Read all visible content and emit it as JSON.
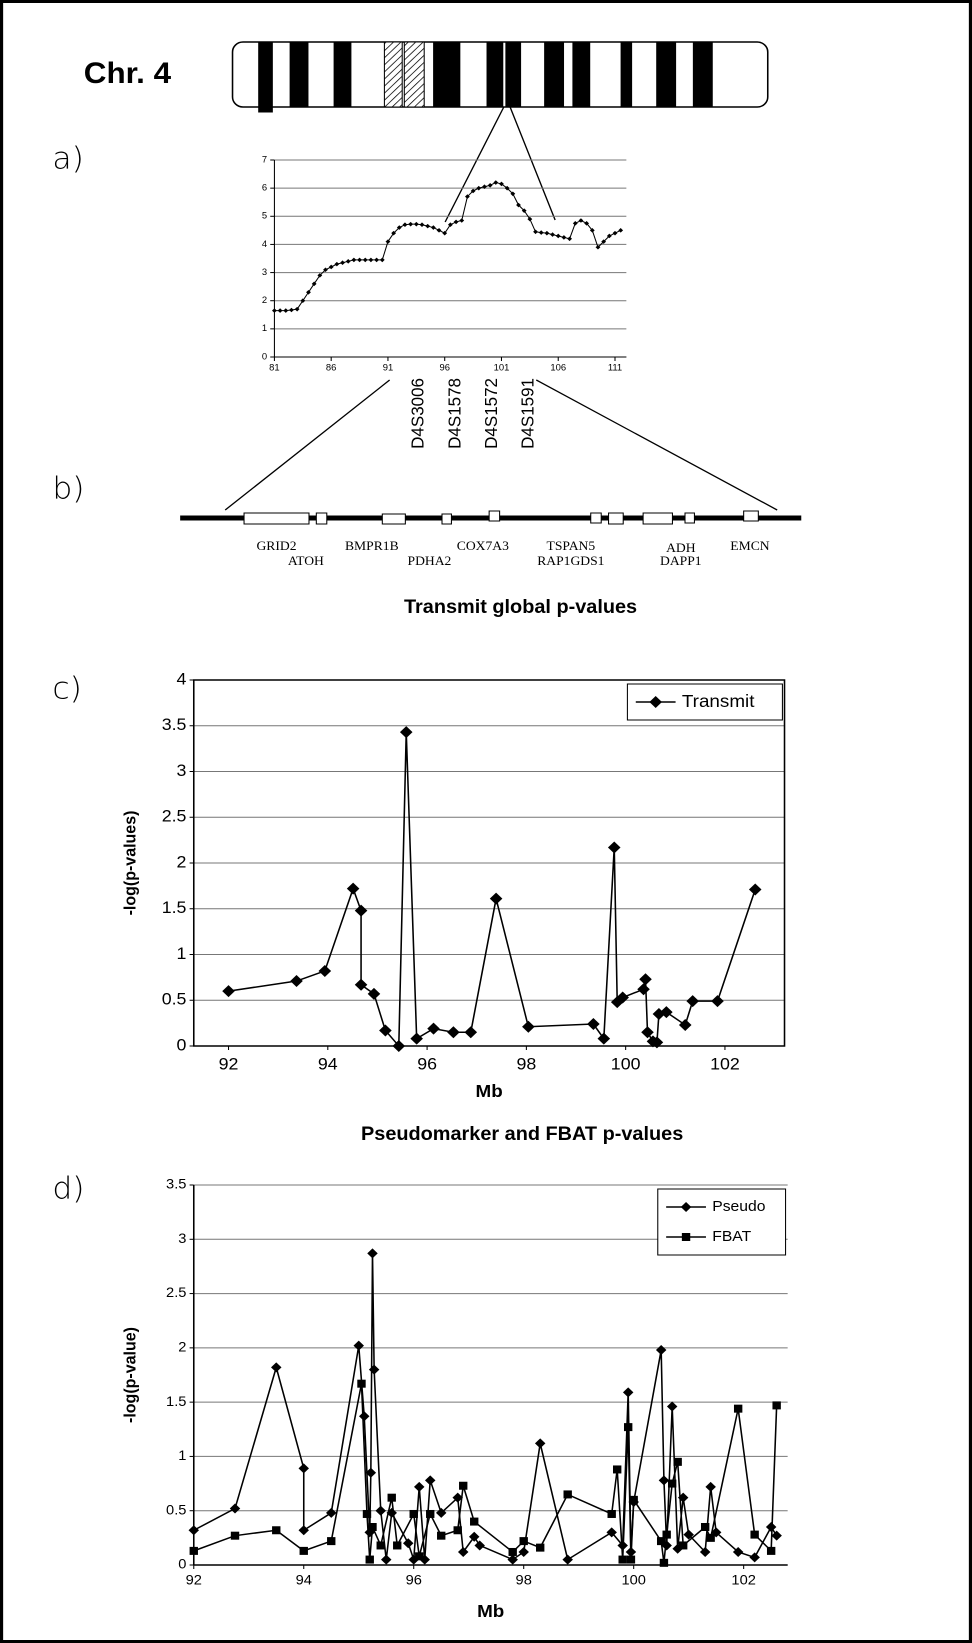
{
  "chromosome": "Chr. 4",
  "panel_labels": [
    "a)",
    "b)",
    "c)",
    "d)"
  ],
  "markers": [
    "D4S3006",
    "D4S1578",
    "D4S1572",
    "D4S1591"
  ],
  "genes": [
    "GRID2",
    "ATOH",
    "BMPR1B",
    "PDHA2",
    "COX7A3",
    "TSPAN5",
    "RAP1GDS1",
    "ADH",
    "DAPP1",
    "EMCN"
  ],
  "chart_data": [
    {
      "type": "line",
      "xlim": [
        81,
        112
      ],
      "xticks": [
        81,
        86,
        91,
        96,
        101,
        106,
        111
      ],
      "ylim": [
        0,
        7
      ],
      "yticks": [
        0,
        1,
        2,
        3,
        4,
        5,
        6,
        7
      ],
      "grid": true,
      "series": [
        {
          "marker": "diamond",
          "color": "#000000",
          "x": [
            81,
            81.5,
            82,
            82.5,
            83,
            83.5,
            84,
            84.5,
            85,
            85.5,
            86,
            86.5,
            87,
            87.5,
            88,
            88.5,
            89,
            89.5,
            90,
            90.5,
            91,
            91.5,
            92,
            92.5,
            93,
            93.5,
            94,
            94.5,
            95,
            95.5,
            96,
            96.5,
            97,
            97.5,
            98,
            98.5,
            99,
            99.5,
            100,
            100.5,
            101,
            101.5,
            102,
            102.5,
            103,
            103.5,
            104,
            104.5,
            105,
            105.5,
            106,
            106.5,
            107,
            107.5,
            108,
            108.5,
            109,
            109.5,
            110,
            110.5,
            111,
            111.5
          ],
          "values": [
            1.65,
            1.65,
            1.65,
            1.67,
            1.7,
            2.0,
            2.3,
            2.6,
            2.9,
            3.1,
            3.2,
            3.3,
            3.35,
            3.4,
            3.45,
            3.45,
            3.45,
            3.45,
            3.45,
            3.45,
            4.1,
            4.4,
            4.6,
            4.7,
            4.72,
            4.72,
            4.7,
            4.65,
            4.6,
            4.5,
            4.4,
            4.7,
            4.8,
            4.85,
            5.7,
            5.9,
            6.0,
            6.05,
            6.1,
            6.2,
            6.15,
            6.0,
            5.8,
            5.4,
            5.2,
            4.9,
            4.45,
            4.42,
            4.4,
            4.35,
            4.3,
            4.25,
            4.2,
            4.75,
            4.85,
            4.75,
            4.5,
            3.9,
            4.1,
            4.3,
            4.4,
            4.5
          ]
        }
      ]
    },
    {
      "type": "line",
      "title": "Transmit global p-values",
      "x_label": "Mb",
      "y_label": "-log(p-values)",
      "xlim": [
        91.3,
        103.2
      ],
      "xticks": [
        92,
        94,
        96,
        98,
        100,
        102
      ],
      "ylim": [
        0,
        4
      ],
      "yticks": [
        0,
        0.5,
        1,
        1.5,
        2,
        2.5,
        3,
        3.5,
        4
      ],
      "grid": true,
      "legend": "upper right",
      "series": [
        {
          "name": "Transmit",
          "marker": "diamond",
          "color": "#000000",
          "x": [
            92.0,
            93.37,
            93.94,
            94.51,
            94.67,
            94.67,
            94.93,
            95.16,
            95.43,
            95.58,
            95.79,
            96.13,
            96.53,
            96.88,
            97.39,
            98.04,
            99.35,
            99.56,
            99.77,
            99.83,
            99.94,
            100.36,
            100.4,
            100.44,
            100.55,
            100.63,
            100.67,
            100.82,
            101.2,
            101.35,
            101.85,
            102.61
          ],
          "values": [
            0.6,
            0.71,
            0.82,
            1.72,
            1.48,
            0.67,
            0.57,
            0.17,
            0.0,
            3.43,
            0.08,
            0.19,
            0.15,
            0.15,
            1.61,
            0.21,
            0.24,
            0.08,
            2.17,
            0.48,
            0.53,
            0.62,
            0.73,
            0.15,
            0.05,
            0.04,
            0.35,
            0.37,
            0.23,
            0.49,
            0.49,
            1.71
          ]
        }
      ]
    },
    {
      "type": "line",
      "title": "Pseudomarker and FBAT p-values",
      "x_label": "Mb",
      "y_label": "-log(p-value)",
      "xlim": [
        92,
        102.8
      ],
      "xticks": [
        92,
        94,
        96,
        98,
        100,
        102
      ],
      "ylim": [
        0,
        3.5
      ],
      "yticks": [
        0,
        0.5,
        1,
        1.5,
        2,
        2.5,
        3,
        3.5
      ],
      "grid": true,
      "legend": "upper right",
      "series": [
        {
          "name": "Pseudo",
          "marker": "diamond",
          "color": "#000000",
          "x": [
            92,
            92.75,
            93.5,
            94,
            94,
            94.5,
            95,
            95.1,
            95.2,
            95.22,
            95.25,
            95.28,
            95.4,
            95.5,
            95.6,
            95.9,
            96,
            96.1,
            96.2,
            96.3,
            96.5,
            96.8,
            96.9,
            97.1,
            97.2,
            97.8,
            98.0,
            98.3,
            98.8,
            99.6,
            99.8,
            99.9,
            99.95,
            100.0,
            100.5,
            100.55,
            100.6,
            100.7,
            100.8,
            100.9,
            101.0,
            101.3,
            101.4,
            101.5,
            101.9,
            102.2,
            102.5,
            102.6
          ],
          "values": [
            0.32,
            0.52,
            1.82,
            0.89,
            0.32,
            0.48,
            2.02,
            1.37,
            0.3,
            0.85,
            2.87,
            1.8,
            0.5,
            0.05,
            0.48,
            0.2,
            0.05,
            0.72,
            0.05,
            0.78,
            0.48,
            0.62,
            0.12,
            0.26,
            0.18,
            0.05,
            0.12,
            1.12,
            0.05,
            0.3,
            0.18,
            1.59,
            0.12,
            0.58,
            1.98,
            0.78,
            0.18,
            1.46,
            0.15,
            0.62,
            0.28,
            0.12,
            0.72,
            0.3,
            0.12,
            0.07,
            0.35,
            0.27
          ]
        },
        {
          "name": "FBAT",
          "marker": "square",
          "color": "#000000",
          "x": [
            92,
            92.75,
            93.5,
            94,
            94.5,
            95.05,
            95.15,
            95.2,
            95.25,
            95.4,
            95.6,
            95.7,
            96,
            96.1,
            96.3,
            96.5,
            96.8,
            96.9,
            97.1,
            97.8,
            98.0,
            98.3,
            98.8,
            99.6,
            99.7,
            99.8,
            99.9,
            99.95,
            100.0,
            100.5,
            100.55,
            100.6,
            100.7,
            100.8,
            100.9,
            101.3,
            101.4,
            101.9,
            102.2,
            102.5,
            102.6
          ],
          "values": [
            0.13,
            0.27,
            0.32,
            0.13,
            0.22,
            1.67,
            0.47,
            0.05,
            0.35,
            0.18,
            0.62,
            0.18,
            0.47,
            0.08,
            0.47,
            0.27,
            0.32,
            0.73,
            0.4,
            0.12,
            0.22,
            0.16,
            0.65,
            0.47,
            0.88,
            0.05,
            1.27,
            0.05,
            0.6,
            0.22,
            0.02,
            0.28,
            0.75,
            0.95,
            0.18,
            0.35,
            0.25,
            1.44,
            0.28,
            0.13,
            1.47
          ]
        }
      ]
    }
  ]
}
